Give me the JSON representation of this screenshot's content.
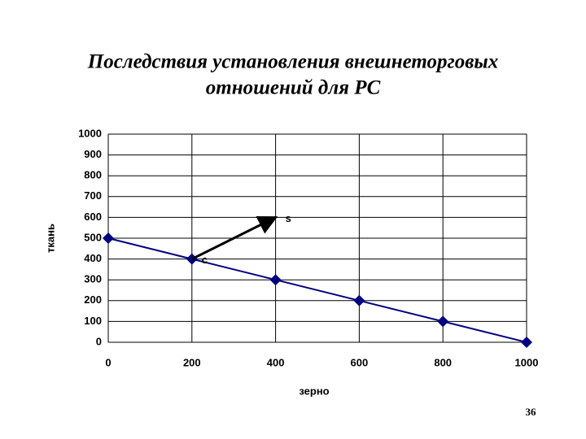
{
  "chart_data": {
    "type": "line",
    "title": [
      "Последствия установления внешнеторговых",
      "отношений для РС"
    ],
    "x_label": "зерно",
    "y_label": "ткань",
    "series": [
      {
        "color": "#000080",
        "x": [
          0,
          200,
          400,
          600,
          800,
          1000
        ],
        "values": [
          500,
          400,
          300,
          200,
          100,
          0
        ]
      }
    ],
    "arrow": {
      "color": "#000000",
      "x": [
        200,
        400
      ],
      "y": [
        400,
        600
      ]
    },
    "annotations": [
      {
        "text": "c",
        "x": 200,
        "y": 400
      },
      {
        "text": "s",
        "x": 400,
        "y": 600
      }
    ],
    "xlim": [
      0,
      1000
    ],
    "xticks": [
      0,
      200,
      400,
      600,
      800,
      1000
    ],
    "ylim": [
      0,
      1000
    ],
    "yticks": [
      0,
      100,
      200,
      300,
      400,
      500,
      600,
      700,
      800,
      900,
      1000
    ],
    "grid": true
  },
  "page_number": "36"
}
